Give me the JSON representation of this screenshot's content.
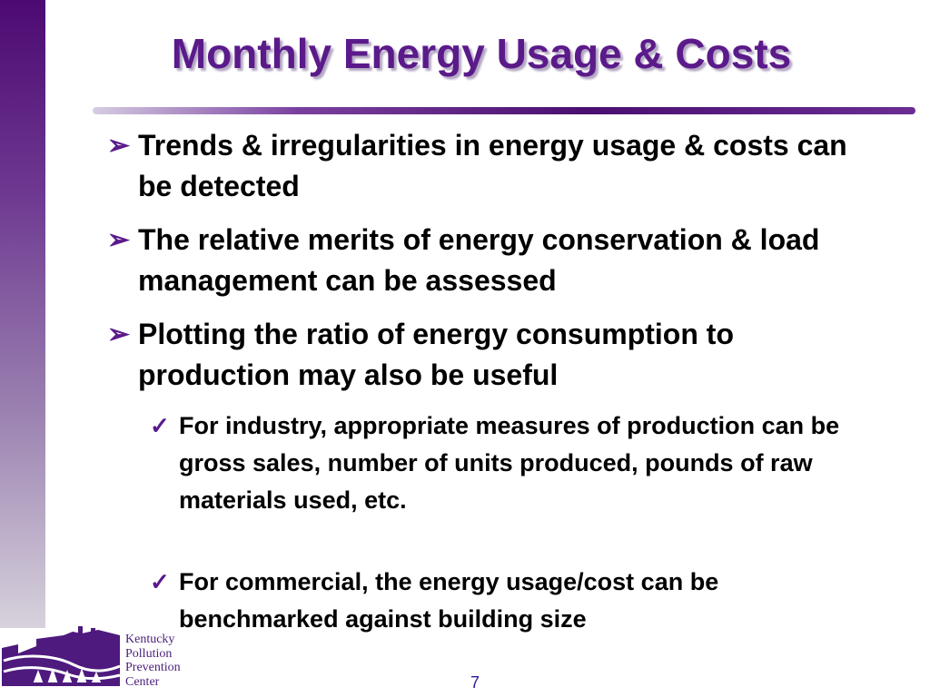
{
  "slide": {
    "title": "Monthly Energy Usage & Costs",
    "page_number": "7"
  },
  "bullets": [
    {
      "text": "Trends & irregularities in energy usage & costs can be detected"
    },
    {
      "text": "The relative merits of energy conservation & load management can be assessed"
    },
    {
      "text": "Plotting the ratio of energy consumption to production may also be useful"
    }
  ],
  "sub_bullets": [
    {
      "text": "For industry, appropriate measures of production can be gross sales, number of units produced, pounds of raw materials used, etc."
    },
    {
      "text": "For commercial, the energy usage/cost can be benchmarked against building size"
    }
  ],
  "logo": {
    "lines": [
      "Kentucky",
      "Pollution",
      "Prevention",
      "Center"
    ]
  },
  "icons": {
    "bullet_1": "arrowhead-bullet-icon",
    "bullet_2": "checkmark-bullet-icon"
  },
  "colors": {
    "title": "#5b1a8a",
    "accent": "#5b1a8a",
    "sidebar_top": "#4c0a72",
    "sidebar_bottom": "#d7d2dc",
    "page_number": "#2d1a9c"
  }
}
